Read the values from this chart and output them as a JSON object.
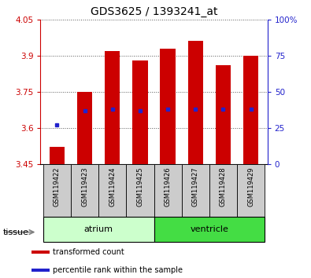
{
  "title": "GDS3625 / 1393241_at",
  "samples": [
    "GSM119422",
    "GSM119423",
    "GSM119424",
    "GSM119425",
    "GSM119426",
    "GSM119427",
    "GSM119428",
    "GSM119429"
  ],
  "transformed_counts": [
    3.52,
    3.75,
    3.92,
    3.88,
    3.93,
    3.96,
    3.86,
    3.9
  ],
  "percentile_ranks": [
    27,
    37,
    38,
    37,
    38,
    38,
    38,
    38
  ],
  "ylim_left": [
    3.45,
    4.05
  ],
  "ylim_right": [
    0,
    100
  ],
  "baseline": 3.45,
  "yticks_left": [
    3.45,
    3.6,
    3.75,
    3.9,
    4.05
  ],
  "yticks_right": [
    0,
    25,
    50,
    75,
    100
  ],
  "ytick_labels_right": [
    "0",
    "25",
    "50",
    "75",
    "100%"
  ],
  "bar_color": "#cc0000",
  "dot_color": "#2222cc",
  "bar_width": 0.55,
  "tissue_groups": [
    {
      "label": "atrium",
      "start": 0,
      "end": 4,
      "color": "#ccffcc"
    },
    {
      "label": "ventricle",
      "start": 4,
      "end": 8,
      "color": "#44dd44"
    }
  ],
  "tissue_label": "tissue",
  "legend_items": [
    {
      "color": "#cc0000",
      "label": "transformed count"
    },
    {
      "color": "#2222cc",
      "label": "percentile rank within the sample"
    }
  ],
  "grid_color": "#555555",
  "tick_color_left": "#cc0000",
  "tick_color_right": "#2222cc",
  "background_xticklabel": "#cccccc",
  "figure_bg": "#ffffff"
}
